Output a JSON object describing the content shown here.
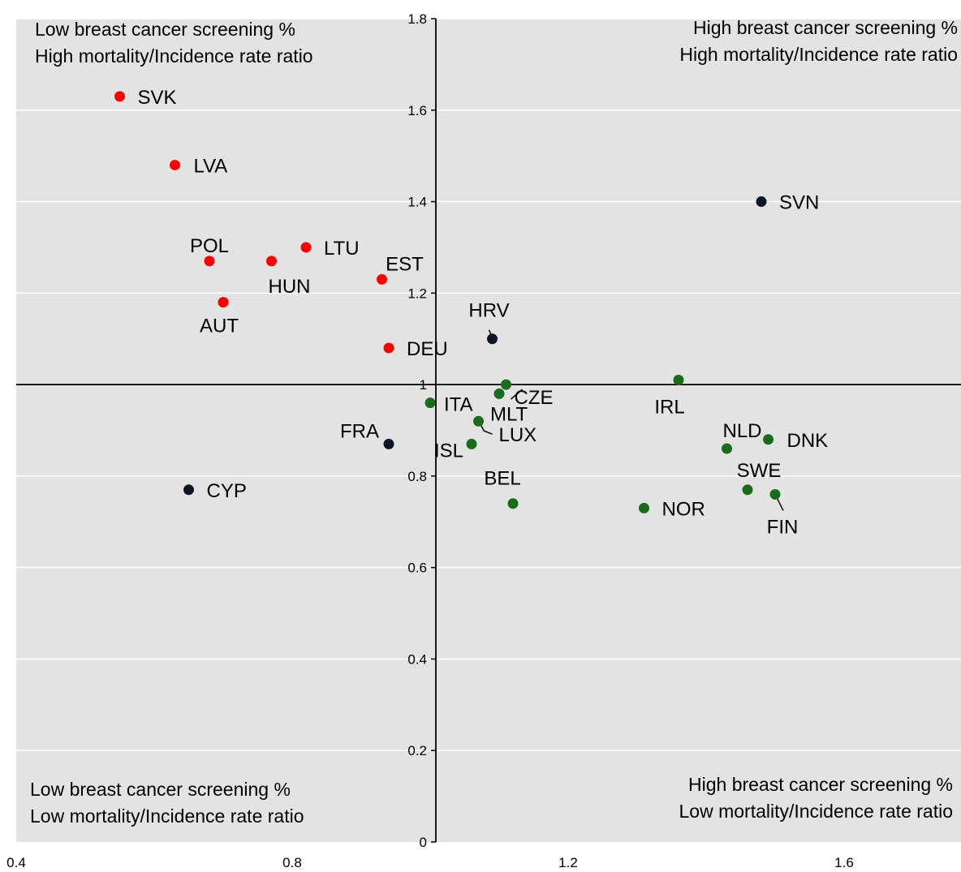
{
  "chart_data": {
    "type": "scatter",
    "title": "",
    "xlabel": "",
    "ylabel": "",
    "xlim": [
      0.4,
      1.8
    ],
    "ylim": [
      0,
      1.8
    ],
    "grid": true,
    "x_ticks": [
      "0.4",
      "0.8",
      "1.2",
      "1.6"
    ],
    "y_ticks": [
      "0",
      "0.2",
      "0.4",
      "0.6",
      "0.8",
      "1",
      "1.2",
      "1.4",
      "1.6",
      "1.8"
    ],
    "reference_lines": {
      "x": 1.0,
      "y": 1.0
    },
    "colors": {
      "red": "#ff0000",
      "green": "#1a6b1a",
      "dark": "#0d1424",
      "background": "#e3e3e3",
      "grid": "#ffffff"
    },
    "quadrant_labels": {
      "top_left": [
        "Low breast cancer screening %",
        "High mortality/Incidence rate ratio"
      ],
      "top_right": [
        "High breast cancer screening %",
        "High mortality/Incidence rate ratio"
      ],
      "bottom_left": [
        "Low breast cancer screening %",
        "Low mortality/Incidence rate ratio"
      ],
      "bottom_right": [
        "High breast cancer screening %",
        "Low mortality/Incidence rate ratio"
      ]
    },
    "points": [
      {
        "label": "SVK",
        "x": 0.55,
        "y": 1.63,
        "color": "red"
      },
      {
        "label": "LVA",
        "x": 0.63,
        "y": 1.48,
        "color": "red"
      },
      {
        "label": "POL",
        "x": 0.68,
        "y": 1.27,
        "color": "red"
      },
      {
        "label": "HUN",
        "x": 0.77,
        "y": 1.27,
        "color": "red"
      },
      {
        "label": "LTU",
        "x": 0.82,
        "y": 1.3,
        "color": "red"
      },
      {
        "label": "EST",
        "x": 0.93,
        "y": 1.23,
        "color": "red"
      },
      {
        "label": "AUT",
        "x": 0.7,
        "y": 1.18,
        "color": "red"
      },
      {
        "label": "DEU",
        "x": 0.94,
        "y": 1.08,
        "color": "red"
      },
      {
        "label": "SVN",
        "x": 1.48,
        "y": 1.4,
        "color": "dark"
      },
      {
        "label": "HRV",
        "x": 1.09,
        "y": 1.1,
        "color": "dark"
      },
      {
        "label": "FRA",
        "x": 0.94,
        "y": 0.87,
        "color": "dark"
      },
      {
        "label": "CYP",
        "x": 0.65,
        "y": 0.77,
        "color": "dark"
      },
      {
        "label": "CZE",
        "x": 1.11,
        "y": 1.0,
        "color": "green"
      },
      {
        "label": "MLT",
        "x": 1.1,
        "y": 0.98,
        "color": "green"
      },
      {
        "label": "ITA",
        "x": 1.0,
        "y": 0.96,
        "color": "green"
      },
      {
        "label": "LUX",
        "x": 1.07,
        "y": 0.92,
        "color": "green"
      },
      {
        "label": "ISL",
        "x": 1.06,
        "y": 0.87,
        "color": "green"
      },
      {
        "label": "BEL",
        "x": 1.12,
        "y": 0.74,
        "color": "green"
      },
      {
        "label": "IRL",
        "x": 1.36,
        "y": 1.01,
        "color": "green"
      },
      {
        "label": "NLD",
        "x": 1.43,
        "y": 0.86,
        "color": "green"
      },
      {
        "label": "DNK",
        "x": 1.49,
        "y": 0.88,
        "color": "green"
      },
      {
        "label": "SWE",
        "x": 1.46,
        "y": 0.77,
        "color": "green"
      },
      {
        "label": "FIN",
        "x": 1.5,
        "y": 0.76,
        "color": "green"
      },
      {
        "label": "NOR",
        "x": 1.31,
        "y": 0.73,
        "color": "green"
      }
    ]
  }
}
